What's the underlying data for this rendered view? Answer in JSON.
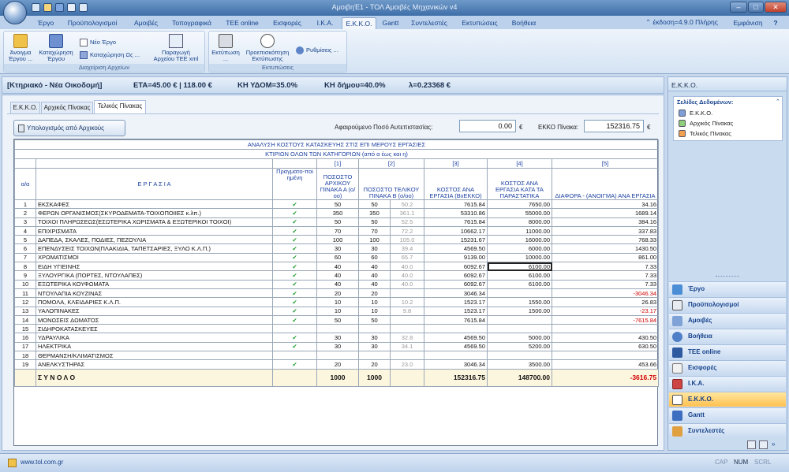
{
  "window": {
    "title": "ΑμοιβηΈ1 - ΤΟΛ Αμοιβές Μηχανικών v4",
    "minimize": "–",
    "maximize": "□",
    "close": "✕"
  },
  "menu_tabs": [
    "Έργο",
    "Προϋπολογισμοί",
    "Αμοιβές",
    "Τοπογραφικά",
    "TEE online",
    "Εισφορές",
    "Ι.Κ.Α.",
    "Ε.Κ.Κ.Ο.",
    "Gantt",
    "Συντελεστές",
    "Εκτυπώσεις",
    "Βοήθεια"
  ],
  "version_text": "⌃ έκδοση=4.9.0 Πλήρης",
  "view_menu": "Εμφάνιση",
  "ribbon": {
    "open": "Άνοιγμα Έργου ...",
    "save": "Καταχώρηση Έργου",
    "new": "Νέο Έργο",
    "save_as": "Καταχώρηση Ως ...",
    "export_tee": "Παραγωγή Αρχείου ΤΕΕ xml ...",
    "group_files": "Διαχείριση Αρχείων",
    "print": "Εκτύπωση ...",
    "preview": "Προεπισκόπηση Εκτύπωσης",
    "settings": "Ρυθμίσεις ...",
    "group_print": "Εκτυπώσεις"
  },
  "info": {
    "category": "[Κτηριακό - Νέα Οικοδομή]",
    "eta": "ΕΤΑ=45.00 € | 118.00 €",
    "kh_ydom": "ΚΗ ΥΔΟΜ=35.0%",
    "kh_dimou": "ΚΗ δήμου=40.0%",
    "lambda": "λ=0.23368 €"
  },
  "inner_tabs": [
    "Ε.Κ.Κ.Ο.",
    "Αρχικός Πίνακας",
    "Τελικός Πίνακας"
  ],
  "calc_button": "Υπολογισμός από Αρχικούς",
  "deduction_label": "Αφαιρούμενο Ποσό Αυτεπιστασίας:",
  "deduction_value": "0.00",
  "ekko_label": "ΕΚΚΟ Πίνακα:",
  "ekko_value": "152316.75",
  "currency": "€",
  "table": {
    "title1": "ΑΝΑΛΥΣΗ ΚΟΣΤΟΥΣ ΚΑΤΑΣΚΕΥΗΣ ΣΤΙΣ ΕΠΙ ΜΕΡΟΥΣ ΕΡΓΑΣΙΕΣ",
    "title2": "ΚΤΙΡΙΩΝ ΟΛΩΝ ΤΩΝ ΚΑΤΗΓΟΡΙΩΝ (από α έως και η)",
    "col_nums": [
      "[1]",
      "[2]",
      "[3]",
      "[4]",
      "[5]"
    ],
    "headers": {
      "aa": "α/α",
      "work": "Ε Ρ Γ Α Σ Ι Α",
      "done": "Πραγματο-ποι ημένη",
      "p1": "ΠΟΣΟΣΤΟ ΑΡΧΙΚΟΥ ΠΙΝΑΚΑ Α (ο/οο)",
      "p2": "ΠΟΣΟΣΤΟ ΤΕΛΙΚΟΥ ΠΙΝΑΚΑ Β (ο/οο)",
      "c3": "ΚΟΣΤΟΣ ΑΝΑ ΕΡΓΑΣΙΑ (ΒxΕΚΚΟ)",
      "c4": "ΚΟΣΤΟΣ ΑΝΑ ΕΡΓΑΣΙΑ ΚΑΤΑ ΤΑ ΠΑΡΑΣΤΑΤΙΚΑ",
      "c5": "ΔΙΑΦΟΡΑ - (ΑΝΟΙΓΜΑ) ΑΝΑ ΕΡΓΑΣΙΑ"
    },
    "rows": [
      {
        "n": "1",
        "work": "ΕΚΣΚΑΦΕΣ",
        "done": true,
        "a": "50",
        "b": "50",
        "bb": "50.2",
        "c": "7615.84",
        "d": "7650.00",
        "e": "34.16",
        "neg": false
      },
      {
        "n": "2",
        "work": "ΦΕΡΩΝ ΟΡΓΑΝΙΣΜΟΣ(ΣΚΥΡΟΔΕΜΑΤΑ-ΤΟΙΧΟΠΟΙΙΕΣ κ.λπ.)",
        "done": true,
        "a": "350",
        "b": "350",
        "bb": "361.1",
        "c": "53310.86",
        "d": "55000.00",
        "e": "1689.14",
        "neg": false
      },
      {
        "n": "3",
        "work": "ΤΟΙΧΟΙ ΠΛΗΡΩΣΕΩΣ(ΕΣΩΤΕΡΙΚΑ ΧΩΡΙΣΜΑΤΑ & ΕΞΩΤΕΡΙΚΟΙ ΤΟΙΧΟΙ)",
        "done": true,
        "a": "50",
        "b": "50",
        "bb": "52.5",
        "c": "7615.84",
        "d": "8000.00",
        "e": "384.16",
        "neg": false
      },
      {
        "n": "4",
        "work": "ΕΠΙΧΡΙΣΜΑΤΑ",
        "done": true,
        "a": "70",
        "b": "70",
        "bb": "72.2",
        "c": "10662.17",
        "d": "11000.00",
        "e": "337.83",
        "neg": false
      },
      {
        "n": "5",
        "work": "ΔΑΠΕΔΑ, ΣΚΑΛΕΣ, ΠΟΔΙΕΣ, ΠΕΖΟΥΛΙΑ",
        "done": true,
        "a": "100",
        "b": "100",
        "bb": "105.0",
        "c": "15231.67",
        "d": "16000.00",
        "e": "768.33",
        "neg": false
      },
      {
        "n": "6",
        "work": "ΕΠΕΝΔΥΣΕΙΣ ΤΟΙΧΩΝ(ΠΛΑΚΙΔΙΑ, ΤΑΠΕΤΣΑΡΙΕΣ, ΞΥΛΟ Κ.Λ.Π.)",
        "done": true,
        "a": "30",
        "b": "30",
        "bb": "39.4",
        "c": "4569.50",
        "d": "6000.00",
        "e": "1430.50",
        "neg": false
      },
      {
        "n": "7",
        "work": "ΧΡΩΜΑΤΙΣΜΟΙ",
        "done": true,
        "a": "60",
        "b": "60",
        "bb": "65.7",
        "c": "9139.00",
        "d": "10000.00",
        "e": "861.00",
        "neg": false
      },
      {
        "n": "8",
        "work": "ΕΙΔΗ ΥΓΙΕΙΝΗΣ",
        "done": true,
        "a": "40",
        "b": "40",
        "bb": "40.0",
        "c": "6092.67",
        "d": "6100.00",
        "e": "7.33",
        "neg": false,
        "sel": true
      },
      {
        "n": "9",
        "work": "ΞΥΛΟΥΡΓΙΚΑ (ΠΟΡΤΕΣ, ΝΤΟΥΛΑΠΕΣ)",
        "done": true,
        "a": "40",
        "b": "40",
        "bb": "40.0",
        "c": "6092.67",
        "d": "6100.00",
        "e": "7.33",
        "neg": false
      },
      {
        "n": "10",
        "work": "ΕΞΩΤΕΡΙΚΑ ΚΟΥΦΩΜΑΤΑ",
        "done": true,
        "a": "40",
        "b": "40",
        "bb": "40.0",
        "c": "6092.67",
        "d": "6100.00",
        "e": "7.33",
        "neg": false
      },
      {
        "n": "11",
        "work": "ΝΤΟΥΛΑΠΙΑ ΚΟΥΖΙΝΑΣ",
        "done": true,
        "a": "20",
        "b": "20",
        "bb": "",
        "c": "3046.34",
        "d": "",
        "e": "-3046.34",
        "neg": true
      },
      {
        "n": "12",
        "work": "ΠΟΜΟΛΑ, ΚΛΕΙΔΑΡΙΕΣ Κ.Λ.Π.",
        "done": true,
        "a": "10",
        "b": "10",
        "bb": "10.2",
        "c": "1523.17",
        "d": "1550.00",
        "e": "26.83",
        "neg": false
      },
      {
        "n": "13",
        "work": "ΥΑΛΟΠΙΝΑΚΕΣ",
        "done": true,
        "a": "10",
        "b": "10",
        "bb": "9.8",
        "c": "1523.17",
        "d": "1500.00",
        "e": "-23.17",
        "neg": true
      },
      {
        "n": "14",
        "work": "ΜΟΝΩΣΕΙΣ ΔΩΜΑΤΟΣ",
        "done": true,
        "a": "50",
        "b": "50",
        "bb": "",
        "c": "7615.84",
        "d": "",
        "e": "-7615.84",
        "neg": true
      },
      {
        "n": "15",
        "work": "ΣΙΔΗΡΟΚΑΤΑΣΚΕΥΕΣ",
        "done": false,
        "a": "",
        "b": "",
        "bb": "",
        "c": "",
        "d": "",
        "e": "",
        "neg": false
      },
      {
        "n": "16",
        "work": "ΥΔΡΑΥΛΙΚΑ",
        "done": true,
        "a": "30",
        "b": "30",
        "bb": "32.8",
        "c": "4569.50",
        "d": "5000.00",
        "e": "430.50",
        "neg": false
      },
      {
        "n": "17",
        "work": "ΗΛΕΚΤΡΙΚΑ",
        "done": true,
        "a": "30",
        "b": "30",
        "bb": "34.1",
        "c": "4569.50",
        "d": "5200.00",
        "e": "630.50",
        "neg": false
      },
      {
        "n": "18",
        "work": "ΘΕΡΜΑΝΣΗ/ΚΛΙΜΑΤΙΣΜΟΣ",
        "done": false,
        "a": "",
        "b": "",
        "bb": "",
        "c": "",
        "d": "",
        "e": "",
        "neg": false
      },
      {
        "n": "19",
        "work": "ΑΝΕΛΚΥΣΤΗΡΑΣ",
        "done": true,
        "a": "20",
        "b": "20",
        "bb": "23.0",
        "c": "3046.34",
        "d": "3500.00",
        "e": "453.66",
        "neg": false
      }
    ],
    "total": {
      "label": "Σ Υ Ν Ο Λ Ο",
      "a": "1000",
      "b": "1000",
      "c": "152316.75",
      "d": "148700.00",
      "e": "-3616.75"
    }
  },
  "right_panel": {
    "title": "Ε.Κ.Κ.Ο.",
    "data_pages_title": "Σελίδες Δεδομένων:",
    "data_pages": [
      "Ε.Κ.Κ.Ο.",
      "Αρχικός Πίνακας",
      "Τελικός Πίνακας"
    ],
    "nav": [
      "Έργο",
      "Προϋπολογισμοί",
      "Αμοιβές",
      "Βοήθεια",
      "TEE online",
      "Εισφορές",
      "Ι.Κ.Α.",
      "Ε.Κ.Κ.Ο.",
      "Gantt",
      "Συντελεστές"
    ]
  },
  "status": {
    "url": "www.tol.com.gr",
    "caps": "CAP",
    "num": "NUM",
    "scrl": "SCRL"
  },
  "colors": {
    "accent": "#15428b",
    "negative": "#d00000",
    "check": "#1a9a2a",
    "active_nav": "#ffc14f"
  }
}
